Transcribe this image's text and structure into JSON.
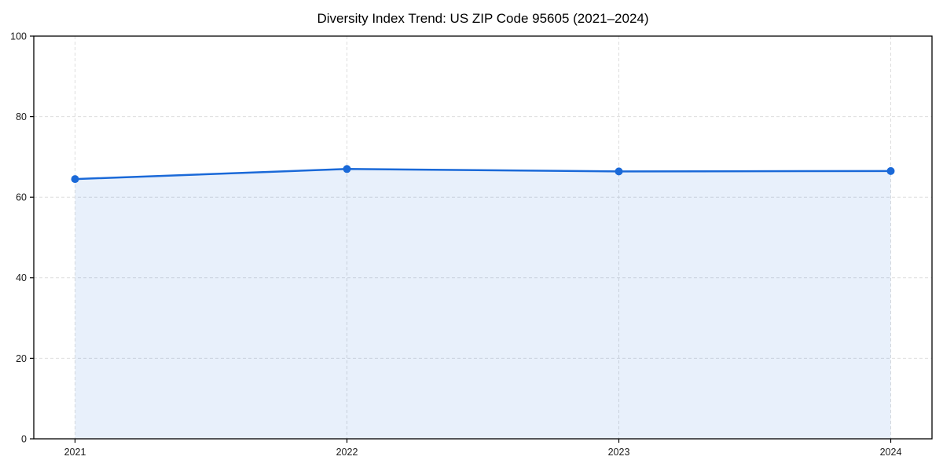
{
  "chart_data": {
    "type": "area",
    "title": "Diversity Index Trend: US ZIP Code 95605 (2021–2024)",
    "categories": [
      "2021",
      "2022",
      "2023",
      "2024"
    ],
    "x": [
      2021,
      2022,
      2023,
      2024
    ],
    "series": [
      {
        "name": "Diversity Index",
        "values": [
          64.5,
          67.0,
          66.4,
          66.5
        ]
      }
    ],
    "xlabel": "",
    "ylabel": "",
    "ylim": [
      0,
      100
    ],
    "yticks": [
      0,
      20,
      40,
      60,
      80,
      100
    ],
    "grid": true,
    "grid_style": "dashed",
    "legend": "none",
    "colors": {
      "line": "#1a69d8",
      "marker": "#1a69d8",
      "fill": "#1a69d8",
      "fill_opacity": 0.1,
      "grid": "#dddddd",
      "axis": "#000000",
      "tick_label": "#1a1a1a",
      "title": "#000000",
      "background": "#ffffff"
    }
  }
}
